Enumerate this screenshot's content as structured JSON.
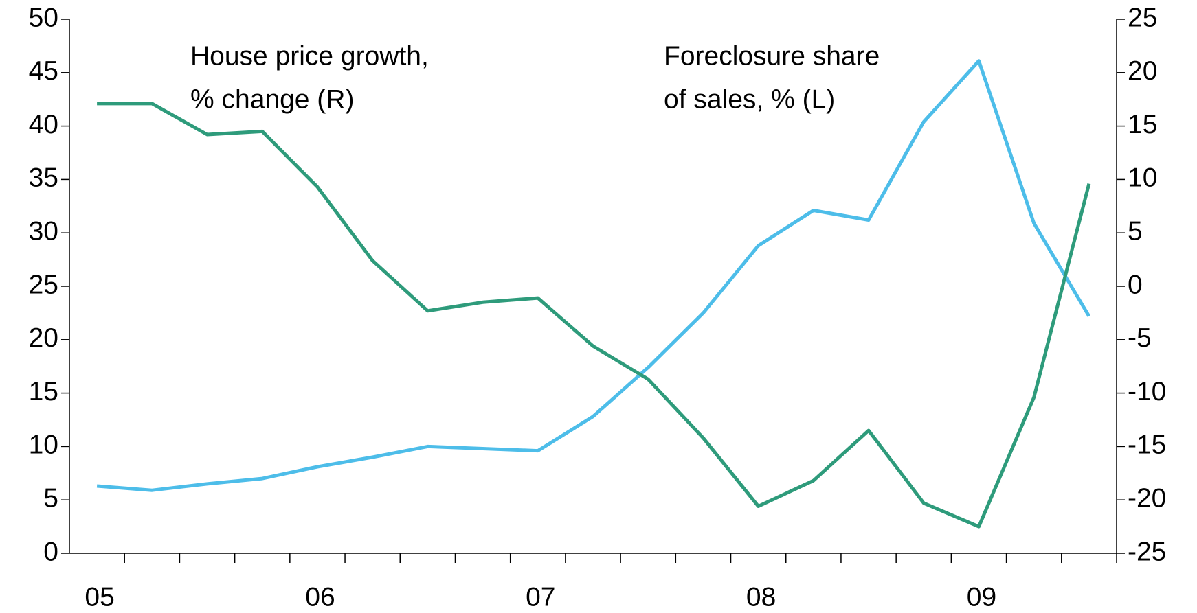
{
  "chart_data": {
    "type": "line",
    "annotations": [
      [
        "House price growth,",
        "% change (R)"
      ],
      [
        "Foreclosure share",
        "of sales, % (L)"
      ]
    ],
    "categories": [
      "05",
      null,
      null,
      null,
      "06",
      null,
      null,
      null,
      "07",
      null,
      null,
      null,
      "08",
      null,
      null,
      null,
      "09",
      null,
      null
    ],
    "series": [
      {
        "color": "#4dbde9",
        "axis": "y",
        "values": [
          6.3,
          5.9,
          6.5,
          7.0,
          8.1,
          9.0,
          10.0,
          9.8,
          9.6,
          12.8,
          17.4,
          22.5,
          28.8,
          32.1,
          31.2,
          40.4,
          46.1,
          30.9,
          22.2
        ]
      },
      {
        "color": "#2e9b7b",
        "axis": "y2",
        "values": [
          17.1,
          17.1,
          14.2,
          14.5,
          9.3,
          2.4,
          -2.3,
          -1.5,
          -1.1,
          -5.6,
          -8.7,
          -14.2,
          -20.6,
          -18.2,
          -13.5,
          -20.3,
          -22.5,
          -10.4,
          9.6
        ]
      }
    ],
    "ylim": [
      0,
      50
    ],
    "yticks": [
      0,
      5,
      10,
      15,
      20,
      25,
      30,
      35,
      40,
      45,
      50
    ],
    "y2lim": [
      -25,
      25
    ],
    "y2ticks": [
      -25,
      -20,
      -15,
      -10,
      -5,
      0,
      5,
      10,
      15,
      20,
      25
    ]
  }
}
